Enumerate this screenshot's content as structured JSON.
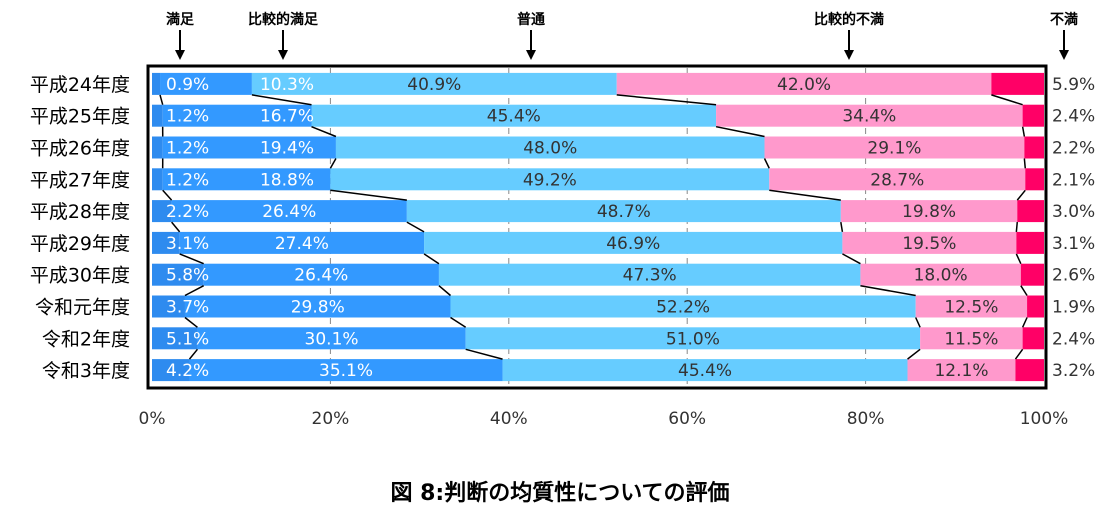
{
  "chart_data": {
    "type": "bar",
    "orientation": "horizontal-stacked-100",
    "title": "図 8:判断の均質性についての評価",
    "categories": [
      "平成24年度",
      "平成25年度",
      "平成26年度",
      "平成27年度",
      "平成28年度",
      "平成29年度",
      "平成30年度",
      "令和元年度",
      "令和2年度",
      "令和3年度"
    ],
    "series": [
      {
        "name": "満足",
        "values": [
          0.9,
          1.2,
          1.2,
          1.2,
          2.2,
          3.1,
          5.8,
          3.7,
          5.1,
          4.2
        ],
        "color": "#2E8BEF",
        "label_color": "#ffffff"
      },
      {
        "name": "比較的満足",
        "values": [
          10.3,
          16.7,
          19.4,
          18.8,
          26.4,
          27.4,
          26.4,
          29.8,
          30.1,
          35.1
        ],
        "color": "#3399FF",
        "label_color": "#ffffff"
      },
      {
        "name": "普通",
        "values": [
          40.9,
          45.4,
          48.0,
          49.2,
          48.7,
          46.9,
          47.3,
          52.2,
          51.0,
          45.4
        ],
        "color": "#66CCFF",
        "label_color": "#333333"
      },
      {
        "name": "比較的不満",
        "values": [
          42.0,
          34.4,
          29.1,
          28.7,
          19.8,
          19.5,
          18.0,
          12.5,
          11.5,
          12.1
        ],
        "color": "#FF99CC",
        "label_color": "#333333"
      },
      {
        "name": "不満",
        "values": [
          5.9,
          2.4,
          2.2,
          2.1,
          3.0,
          3.1,
          2.6,
          1.9,
          2.4,
          3.2
        ],
        "color": "#FF0066",
        "label_color": "#333333"
      }
    ],
    "value_labels": [
      [
        "0.9%",
        "10.3%",
        "40.9%",
        "42.0%",
        "5.9%"
      ],
      [
        "1.2%",
        "16.7%",
        "45.4%",
        "34.4%",
        "2.4%"
      ],
      [
        "1.2%",
        "19.4%",
        "48.0%",
        "29.1%",
        "2.2%"
      ],
      [
        "1.2%",
        "18.8%",
        "49.2%",
        "28.7%",
        "2.1%"
      ],
      [
        "2.2%",
        "26.4%",
        "48.7%",
        "19.8%",
        "3.0%"
      ],
      [
        "3.1%",
        "27.4%",
        "46.9%",
        "19.5%",
        "3.1%"
      ],
      [
        "5.8%",
        "26.4%",
        "47.3%",
        "18.0%",
        "2.6%"
      ],
      [
        "3.7%",
        "29.8%",
        "52.2%",
        "12.5%",
        "1.9%"
      ],
      [
        "5.1%",
        "30.1%",
        "51.0%",
        "11.5%",
        "2.4%"
      ],
      [
        "4.2%",
        "35.1%",
        "45.4%",
        "12.1%",
        "3.2%"
      ]
    ],
    "x_ticks": [
      "0%",
      "20%",
      "40%",
      "60%",
      "80%",
      "100%"
    ],
    "x_tick_values": [
      0,
      20,
      40,
      60,
      80,
      100
    ],
    "xlim": [
      0,
      100
    ],
    "grid": true,
    "legend_placement": "top-arrows",
    "series_connector_lines": true
  }
}
